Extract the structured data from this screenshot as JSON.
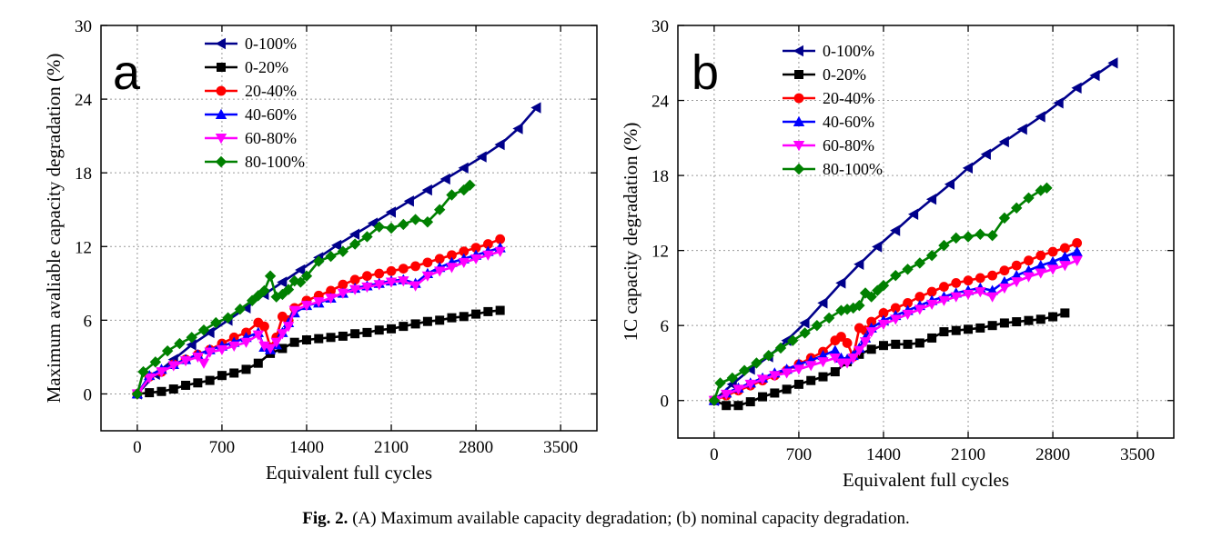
{
  "caption": {
    "label": "Fig. 2.",
    "text": "(A) Maximum available capacity degradation; (b) nominal capacity degradation."
  },
  "colors": {
    "0-100%": "#00008b",
    "0-20%": "#000000",
    "20-40%": "#ff0000",
    "40-60%": "#0000ff",
    "60-80%": "#ff00ff",
    "80-100%": "#008000"
  },
  "chart_data": [
    {
      "type": "line",
      "panel_label": "a",
      "title": "",
      "xlabel": "Equivalent full cycles",
      "ylabel": "Maximum avaliable capacity degradation (%)",
      "xlim": [
        -300,
        3800
      ],
      "ylim": [
        -3,
        30
      ],
      "xticks": [
        0,
        700,
        1400,
        2100,
        2800,
        3500
      ],
      "yticks": [
        0,
        6,
        12,
        18,
        24,
        30
      ],
      "grid": true,
      "legend": "top-left",
      "series": [
        {
          "name": "0-100%",
          "marker": "triangle-left",
          "x": [
            0,
            150,
            300,
            450,
            600,
            750,
            900,
            1050,
            1200,
            1350,
            1500,
            1650,
            1800,
            1950,
            2100,
            2250,
            2400,
            2550,
            2700,
            2850,
            3000,
            3150,
            3300
          ],
          "y": [
            0,
            1.6,
            2.8,
            4.0,
            5.0,
            6.0,
            7.0,
            8.1,
            9.1,
            10.1,
            11.1,
            12.1,
            13.0,
            13.9,
            14.8,
            15.7,
            16.6,
            17.5,
            18.4,
            19.3,
            20.3,
            21.6,
            23.3
          ]
        },
        {
          "name": "0-20%",
          "marker": "square",
          "x": [
            0,
            100,
            200,
            300,
            400,
            500,
            600,
            700,
            800,
            900,
            1000,
            1100,
            1200,
            1300,
            1400,
            1500,
            1600,
            1700,
            1800,
            1900,
            2000,
            2100,
            2200,
            2300,
            2400,
            2500,
            2600,
            2700,
            2800,
            2900,
            3000
          ],
          "y": [
            0,
            0.1,
            0.2,
            0.4,
            0.7,
            0.9,
            1.1,
            1.5,
            1.7,
            2.0,
            2.5,
            3.3,
            3.7,
            4.2,
            4.4,
            4.5,
            4.6,
            4.7,
            4.9,
            5.0,
            5.2,
            5.3,
            5.5,
            5.7,
            5.9,
            6.0,
            6.2,
            6.3,
            6.5,
            6.7,
            6.8
          ]
        },
        {
          "name": "20-40%",
          "marker": "circle",
          "x": [
            0,
            100,
            200,
            300,
            400,
            500,
            600,
            700,
            800,
            900,
            1000,
            1050,
            1100,
            1150,
            1200,
            1250,
            1300,
            1400,
            1500,
            1600,
            1700,
            1800,
            1900,
            2000,
            2100,
            2200,
            2300,
            2400,
            2500,
            2600,
            2700,
            2800,
            2900,
            3000
          ],
          "y": [
            0,
            1.4,
            1.8,
            2.4,
            2.8,
            3.2,
            3.6,
            4.1,
            4.6,
            5.0,
            5.8,
            5.5,
            3.8,
            4.6,
            6.3,
            6.0,
            7.0,
            7.6,
            8.0,
            8.4,
            8.9,
            9.3,
            9.6,
            9.8,
            10.0,
            10.2,
            10.4,
            10.7,
            11.0,
            11.3,
            11.6,
            11.9,
            12.2,
            12.6
          ]
        },
        {
          "name": "40-60%",
          "marker": "triangle-up",
          "x": [
            0,
            100,
            200,
            300,
            400,
            500,
            600,
            700,
            800,
            900,
            1000,
            1050,
            1100,
            1150,
            1200,
            1250,
            1300,
            1400,
            1500,
            1600,
            1700,
            1800,
            1900,
            2000,
            2100,
            2200,
            2300,
            2400,
            2500,
            2600,
            2700,
            2800,
            2900,
            3000
          ],
          "y": [
            0,
            1.5,
            2.0,
            2.4,
            2.8,
            3.2,
            3.6,
            3.9,
            4.2,
            4.6,
            5.0,
            3.8,
            3.6,
            4.0,
            5.0,
            5.8,
            6.6,
            7.2,
            7.4,
            7.8,
            8.2,
            8.6,
            8.8,
            9.0,
            9.2,
            9.3,
            9.0,
            9.8,
            10.3,
            10.7,
            11.0,
            11.3,
            11.6,
            11.9
          ]
        },
        {
          "name": "60-80%",
          "marker": "triangle-down",
          "x": [
            0,
            100,
            200,
            300,
            400,
            500,
            550,
            600,
            700,
            800,
            900,
            1000,
            1050,
            1100,
            1150,
            1200,
            1250,
            1300,
            1400,
            1500,
            1600,
            1700,
            1800,
            1900,
            2000,
            2100,
            2200,
            2300,
            2400,
            2500,
            2600,
            2700,
            2800,
            2900,
            3000
          ],
          "y": [
            0,
            1.3,
            1.8,
            2.3,
            2.7,
            3.0,
            2.5,
            3.4,
            3.6,
            3.9,
            4.2,
            4.8,
            3.9,
            3.7,
            4.2,
            4.9,
            5.5,
            6.8,
            7.2,
            7.5,
            7.8,
            8.2,
            8.5,
            8.7,
            8.9,
            9.1,
            9.2,
            8.8,
            9.6,
            10.0,
            10.3,
            10.7,
            11.0,
            11.3,
            11.6
          ]
        },
        {
          "name": "80-100%",
          "marker": "diamond",
          "x": [
            0,
            50,
            150,
            250,
            350,
            450,
            550,
            650,
            750,
            850,
            950,
            1000,
            1050,
            1100,
            1150,
            1200,
            1250,
            1300,
            1350,
            1400,
            1500,
            1600,
            1700,
            1800,
            1900,
            2000,
            2100,
            2200,
            2300,
            2400,
            2500,
            2600,
            2700,
            2750
          ],
          "y": [
            0,
            1.8,
            2.6,
            3.5,
            4.1,
            4.6,
            5.2,
            5.8,
            6.2,
            6.9,
            7.6,
            8.0,
            8.4,
            9.6,
            7.9,
            8.1,
            8.5,
            9.2,
            9.1,
            9.6,
            10.8,
            11.2,
            11.6,
            12.2,
            12.8,
            13.6,
            13.5,
            13.8,
            14.2,
            14.0,
            15.0,
            16.2,
            16.6,
            17.0
          ]
        }
      ]
    },
    {
      "type": "line",
      "panel_label": "b",
      "title": "",
      "xlabel": "Equivalent full cycles",
      "ylabel": "1C capacity degradation (%)",
      "xlim": [
        -300,
        3800
      ],
      "ylim": [
        -3,
        30
      ],
      "xticks": [
        0,
        700,
        1400,
        2100,
        2800,
        3500
      ],
      "yticks": [
        0,
        6,
        12,
        18,
        24,
        30
      ],
      "grid": true,
      "legend": "top-left",
      "series": [
        {
          "name": "0-100%",
          "marker": "triangle-left",
          "x": [
            0,
            150,
            300,
            450,
            600,
            750,
            900,
            1050,
            1200,
            1350,
            1500,
            1650,
            1800,
            1950,
            2100,
            2250,
            2400,
            2550,
            2700,
            2850,
            3000,
            3150,
            3300
          ],
          "y": [
            0,
            1.3,
            2.5,
            3.5,
            4.8,
            6.2,
            7.8,
            9.4,
            10.9,
            12.3,
            13.6,
            14.9,
            16.1,
            17.3,
            18.6,
            19.7,
            20.7,
            21.7,
            22.7,
            23.8,
            25.0,
            26.0,
            27.0
          ]
        },
        {
          "name": "0-20%",
          "marker": "square",
          "x": [
            0,
            100,
            200,
            300,
            400,
            500,
            600,
            700,
            800,
            900,
            1000,
            1100,
            1200,
            1300,
            1400,
            1500,
            1600,
            1700,
            1800,
            1900,
            2000,
            2100,
            2200,
            2300,
            2400,
            2500,
            2600,
            2700,
            2800,
            2900
          ],
          "y": [
            0,
            -0.4,
            -0.4,
            -0.1,
            0.3,
            0.6,
            0.9,
            1.3,
            1.6,
            1.9,
            2.3,
            3.1,
            3.7,
            4.1,
            4.4,
            4.5,
            4.5,
            4.6,
            5.0,
            5.5,
            5.6,
            5.7,
            5.8,
            6.0,
            6.2,
            6.3,
            6.4,
            6.5,
            6.7,
            7.0
          ]
        },
        {
          "name": "20-40%",
          "marker": "circle",
          "x": [
            0,
            100,
            200,
            300,
            400,
            500,
            600,
            700,
            800,
            900,
            1000,
            1050,
            1100,
            1150,
            1200,
            1250,
            1300,
            1400,
            1500,
            1600,
            1700,
            1800,
            1900,
            2000,
            2100,
            2200,
            2300,
            2400,
            2500,
            2600,
            2700,
            2800,
            2900,
            3000
          ],
          "y": [
            0,
            0.4,
            0.8,
            1.2,
            1.6,
            2.0,
            2.4,
            2.9,
            3.4,
            3.9,
            4.8,
            5.1,
            4.6,
            3.5,
            5.8,
            5.6,
            6.3,
            7.0,
            7.4,
            7.8,
            8.3,
            8.7,
            9.1,
            9.4,
            9.6,
            9.8,
            10.0,
            10.4,
            10.8,
            11.2,
            11.6,
            11.9,
            12.2,
            12.6
          ]
        },
        {
          "name": "40-60%",
          "marker": "triangle-up",
          "x": [
            0,
            100,
            200,
            300,
            400,
            500,
            600,
            700,
            800,
            900,
            1000,
            1050,
            1100,
            1150,
            1200,
            1250,
            1300,
            1400,
            1500,
            1600,
            1700,
            1800,
            1900,
            2000,
            2100,
            2200,
            2300,
            2400,
            2500,
            2600,
            2700,
            2800,
            2900,
            3000
          ],
          "y": [
            0,
            0.6,
            1.0,
            1.4,
            1.8,
            2.2,
            2.5,
            2.9,
            3.2,
            3.6,
            4.0,
            3.4,
            3.3,
            3.6,
            4.2,
            5.0,
            5.8,
            6.4,
            6.8,
            7.2,
            7.6,
            8.0,
            8.3,
            8.6,
            8.8,
            9.0,
            8.8,
            9.5,
            10.0,
            10.4,
            10.8,
            11.1,
            11.5,
            11.9
          ]
        },
        {
          "name": "60-80%",
          "marker": "triangle-down",
          "x": [
            0,
            100,
            200,
            300,
            400,
            500,
            600,
            700,
            800,
            900,
            1000,
            1050,
            1100,
            1150,
            1200,
            1250,
            1300,
            1400,
            1500,
            1600,
            1700,
            1800,
            1900,
            2000,
            2100,
            2200,
            2300,
            2400,
            2500,
            2600,
            2700,
            2800,
            2900,
            3000
          ],
          "y": [
            0,
            0.5,
            0.9,
            1.3,
            1.7,
            2.0,
            2.2,
            2.5,
            2.8,
            3.1,
            3.4,
            3.0,
            3.0,
            3.4,
            4.0,
            4.7,
            5.5,
            6.1,
            6.5,
            6.9,
            7.3,
            7.7,
            8.0,
            8.3,
            8.5,
            8.7,
            8.3,
            9.0,
            9.5,
            9.9,
            10.2,
            10.5,
            10.8,
            11.2
          ]
        },
        {
          "name": "80-100%",
          "marker": "diamond",
          "x": [
            0,
            50,
            150,
            250,
            350,
            450,
            550,
            650,
            750,
            850,
            950,
            1050,
            1100,
            1150,
            1200,
            1250,
            1300,
            1350,
            1400,
            1500,
            1600,
            1700,
            1800,
            1900,
            2000,
            2100,
            2200,
            2300,
            2400,
            2500,
            2600,
            2700,
            2750
          ],
          "y": [
            0,
            1.4,
            1.8,
            2.4,
            3.0,
            3.6,
            4.2,
            4.8,
            5.4,
            6.0,
            6.6,
            7.2,
            7.3,
            7.4,
            7.6,
            8.6,
            8.3,
            8.8,
            9.2,
            10.0,
            10.5,
            11.0,
            11.6,
            12.4,
            13.0,
            13.1,
            13.3,
            13.2,
            14.6,
            15.4,
            16.2,
            16.8,
            17.0
          ]
        }
      ]
    }
  ]
}
